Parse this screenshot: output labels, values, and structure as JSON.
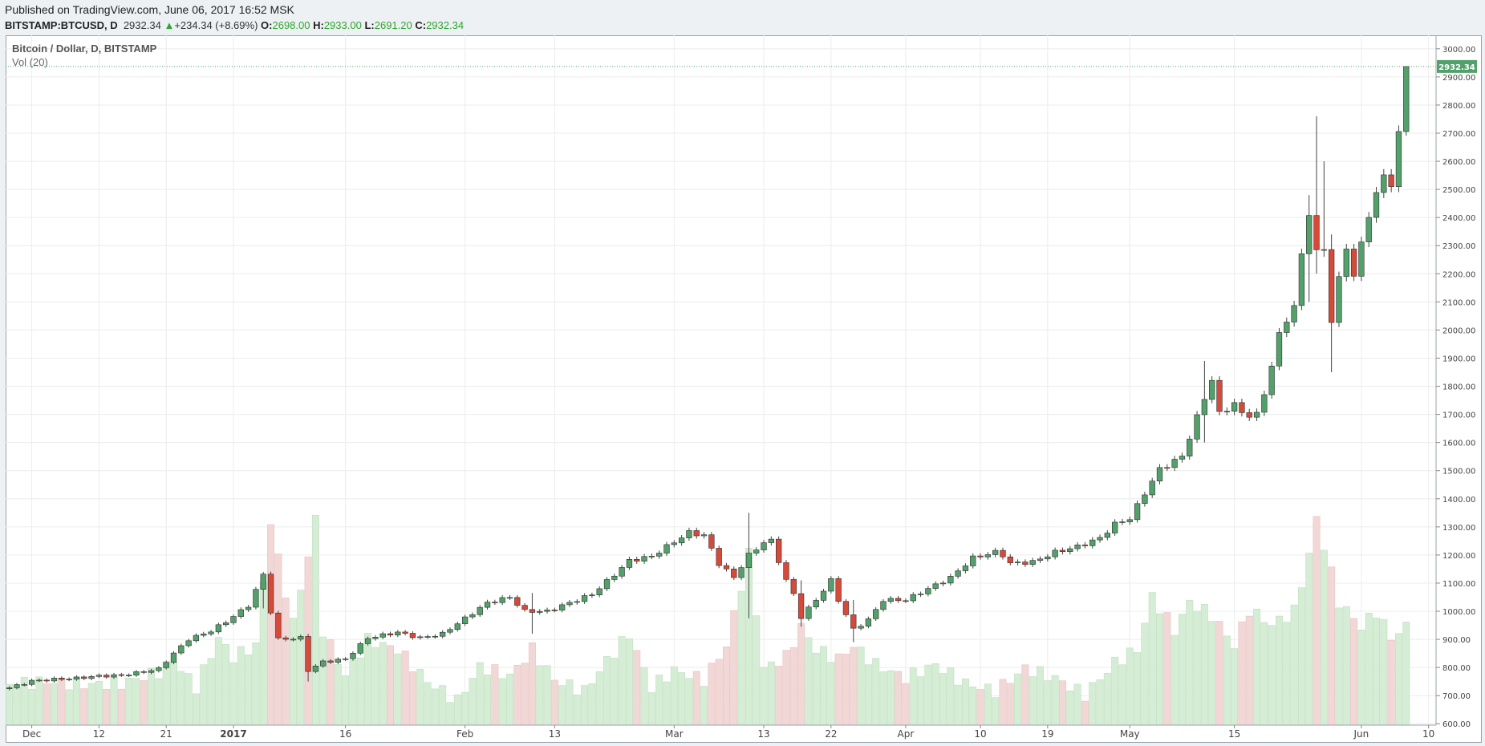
{
  "header": {
    "published": "Published on TradingView.com, June 06, 2017 16:52 MSK",
    "symbol": "BITSTAMP:BTCUSD, D",
    "price": "2932.34",
    "arrow": "▲",
    "change": "+234.34 (+8.69%)",
    "open_label": "O:",
    "open": "2698.00",
    "high_label": "H:",
    "high": "2933.00",
    "low_label": "L:",
    "low": "2691.20",
    "close_label": "C:",
    "close": "2932.34"
  },
  "legend": {
    "title": "Bitcoin / Dollar, D, BITSTAMP",
    "volume": "Vol (20)"
  },
  "colors": {
    "up": "#53a06b",
    "down": "#d64a3a",
    "vol_up": "#d5ecd5",
    "vol_down": "#f2d7d7",
    "price_line": "#53a06b",
    "grid": "#ececec"
  },
  "chart_data": {
    "type": "candlestick",
    "ylim": [
      595,
      3048
    ],
    "yticks": [
      600,
      700,
      800,
      900,
      1000,
      1100,
      1200,
      1300,
      1400,
      1500,
      1600,
      1700,
      1800,
      1900,
      2000,
      2100,
      2200,
      2300,
      2400,
      2500,
      2600,
      2700,
      2800,
      2900,
      3000
    ],
    "ytick_labels": [
      "600.00",
      "700.00",
      "800.00",
      "900.00",
      "1000.00",
      "1100.00",
      "1200.00",
      "1300.00",
      "1400.00",
      "1500.00",
      "1600.00",
      "1700.00",
      "1800.00",
      "1900.00",
      "2000.00",
      "2100.00",
      "2200.00",
      "2300.00",
      "2400.00",
      "2500.00",
      "2600.00",
      "2700.00",
      "2800.00",
      "2900.00",
      "3000.00"
    ],
    "xticks": [
      {
        "label": "Dec",
        "day": 3,
        "bold": false
      },
      {
        "label": "12",
        "day": 12,
        "bold": false
      },
      {
        "label": "21",
        "day": 21,
        "bold": false
      },
      {
        "label": "2017",
        "day": 30,
        "bold": true
      },
      {
        "label": "16",
        "day": 45,
        "bold": false
      },
      {
        "label": "Feb",
        "day": 61,
        "bold": false
      },
      {
        "label": "13",
        "day": 73,
        "bold": false
      },
      {
        "label": "Mar",
        "day": 89,
        "bold": false
      },
      {
        "label": "13",
        "day": 101,
        "bold": false
      },
      {
        "label": "22",
        "day": 110,
        "bold": false
      },
      {
        "label": "Apr",
        "day": 120,
        "bold": false
      },
      {
        "label": "10",
        "day": 130,
        "bold": false
      },
      {
        "label": "19",
        "day": 139,
        "bold": false
      },
      {
        "label": "May",
        "day": 150,
        "bold": false
      },
      {
        "label": "15",
        "day": 164,
        "bold": false
      },
      {
        "label": "Jun",
        "day": 181,
        "bold": false
      },
      {
        "label": "10",
        "day": 190,
        "bold": false
      }
    ],
    "anchors": [
      {
        "day": 0,
        "close": 728
      },
      {
        "day": 3,
        "close": 752
      },
      {
        "day": 6,
        "close": 758
      },
      {
        "day": 9,
        "close": 762
      },
      {
        "day": 12,
        "close": 770
      },
      {
        "day": 15,
        "close": 772
      },
      {
        "day": 18,
        "close": 785
      },
      {
        "day": 20,
        "close": 795
      },
      {
        "day": 22,
        "close": 850
      },
      {
        "day": 24,
        "close": 900
      },
      {
        "day": 27,
        "close": 930
      },
      {
        "day": 29,
        "close": 963
      },
      {
        "day": 32,
        "close": 1020
      },
      {
        "day": 34,
        "close": 1130
      },
      {
        "day": 35,
        "close": 1000
      },
      {
        "day": 36,
        "close": 900
      },
      {
        "day": 39,
        "close": 905
      },
      {
        "day": 40,
        "close": 790
      },
      {
        "day": 42,
        "close": 820
      },
      {
        "day": 45,
        "close": 830
      },
      {
        "day": 48,
        "close": 905
      },
      {
        "day": 52,
        "close": 925
      },
      {
        "day": 55,
        "close": 905
      },
      {
        "day": 58,
        "close": 920
      },
      {
        "day": 61,
        "close": 975
      },
      {
        "day": 64,
        "close": 1030
      },
      {
        "day": 67,
        "close": 1050
      },
      {
        "day": 69,
        "close": 1000
      },
      {
        "day": 72,
        "close": 1000
      },
      {
        "day": 75,
        "close": 1030
      },
      {
        "day": 78,
        "close": 1060
      },
      {
        "day": 81,
        "close": 1130
      },
      {
        "day": 83,
        "close": 1180
      },
      {
        "day": 86,
        "close": 1195
      },
      {
        "day": 88,
        "close": 1230
      },
      {
        "day": 91,
        "close": 1280
      },
      {
        "day": 93,
        "close": 1270
      },
      {
        "day": 95,
        "close": 1170
      },
      {
        "day": 97,
        "close": 1120
      },
      {
        "day": 99,
        "close": 1200
      },
      {
        "day": 101,
        "close": 1245
      },
      {
        "day": 102,
        "close": 1250
      },
      {
        "day": 104,
        "close": 1110
      },
      {
        "day": 105,
        "close": 1060
      },
      {
        "day": 106,
        "close": 980
      },
      {
        "day": 108,
        "close": 1040
      },
      {
        "day": 110,
        "close": 1110
      },
      {
        "day": 111,
        "close": 1040
      },
      {
        "day": 113,
        "close": 935
      },
      {
        "day": 115,
        "close": 970
      },
      {
        "day": 117,
        "close": 1040
      },
      {
        "day": 120,
        "close": 1040
      },
      {
        "day": 123,
        "close": 1080
      },
      {
        "day": 126,
        "close": 1120
      },
      {
        "day": 129,
        "close": 1190
      },
      {
        "day": 132,
        "close": 1210
      },
      {
        "day": 133,
        "close": 1200
      },
      {
        "day": 134,
        "close": 1170
      },
      {
        "day": 137,
        "close": 1175
      },
      {
        "day": 140,
        "close": 1210
      },
      {
        "day": 143,
        "close": 1230
      },
      {
        "day": 146,
        "close": 1260
      },
      {
        "day": 148,
        "close": 1310
      },
      {
        "day": 150,
        "close": 1330
      },
      {
        "day": 152,
        "close": 1420
      },
      {
        "day": 154,
        "close": 1505
      },
      {
        "day": 157,
        "close": 1550
      },
      {
        "day": 159,
        "close": 1690
      },
      {
        "day": 161,
        "close": 1825
      },
      {
        "day": 162,
        "close": 1700
      },
      {
        "day": 164,
        "close": 1740
      },
      {
        "day": 165,
        "close": 1700
      },
      {
        "day": 166,
        "close": 1700
      },
      {
        "day": 167,
        "close": 1700
      },
      {
        "day": 168,
        "close": 1770
      },
      {
        "day": 169,
        "close": 1880
      },
      {
        "day": 170,
        "close": 1980
      },
      {
        "day": 172,
        "close": 2090
      },
      {
        "day": 173,
        "close": 2260
      },
      {
        "day": 174,
        "close": 2420
      },
      {
        "day": 175,
        "close": 2280
      },
      {
        "day": 176,
        "close": 2280
      },
      {
        "day": 177,
        "close": 2040
      },
      {
        "day": 178,
        "close": 2180
      },
      {
        "day": 179,
        "close": 2290
      },
      {
        "day": 180,
        "close": 2200
      },
      {
        "day": 181,
        "close": 2300
      },
      {
        "day": 182,
        "close": 2410
      },
      {
        "day": 183,
        "close": 2490
      },
      {
        "day": 184,
        "close": 2540
      },
      {
        "day": 185,
        "close": 2525
      },
      {
        "day": 186,
        "close": 2698
      },
      {
        "day": 187,
        "close": 2932.34
      }
    ],
    "wicks": [
      {
        "day": 34,
        "high": 1140,
        "low": 1010
      },
      {
        "day": 40,
        "high": 920,
        "low": 750
      },
      {
        "day": 70,
        "high": 1065,
        "low": 920
      },
      {
        "day": 99,
        "high": 1350,
        "low": 975
      },
      {
        "day": 106,
        "high": 1110,
        "low": 945
      },
      {
        "day": 113,
        "high": 1040,
        "low": 890
      },
      {
        "day": 160,
        "high": 1890,
        "low": 1600
      },
      {
        "day": 174,
        "high": 2480,
        "low": 2100
      },
      {
        "day": 175,
        "high": 2760,
        "low": 2200
      },
      {
        "day": 176,
        "high": 2600,
        "low": 2260
      },
      {
        "day": 177,
        "high": 2340,
        "low": 1850
      },
      {
        "day": 187,
        "high": 2933,
        "low": 2691.2
      }
    ],
    "volume_max": 1100,
    "volume": [
      {
        "day": 0,
        "value": 215
      },
      {
        "day": 5,
        "value": 230
      },
      {
        "day": 10,
        "value": 215
      },
      {
        "day": 15,
        "value": 220
      },
      {
        "day": 20,
        "value": 280
      },
      {
        "day": 22,
        "value": 340
      },
      {
        "day": 25,
        "value": 200
      },
      {
        "day": 28,
        "value": 460
      },
      {
        "day": 30,
        "value": 360
      },
      {
        "day": 33,
        "value": 420
      },
      {
        "day": 35,
        "value": 1080
      },
      {
        "day": 36,
        "value": 870
      },
      {
        "day": 38,
        "value": 540
      },
      {
        "day": 41,
        "value": 1080
      },
      {
        "day": 42,
        "value": 500
      },
      {
        "day": 45,
        "value": 260
      },
      {
        "day": 48,
        "value": 450
      },
      {
        "day": 52,
        "value": 400
      },
      {
        "day": 56,
        "value": 230
      },
      {
        "day": 60,
        "value": 130
      },
      {
        "day": 63,
        "value": 310
      },
      {
        "day": 67,
        "value": 260
      },
      {
        "day": 70,
        "value": 400
      },
      {
        "day": 73,
        "value": 240
      },
      {
        "day": 77,
        "value": 180
      },
      {
        "day": 80,
        "value": 340
      },
      {
        "day": 83,
        "value": 480
      },
      {
        "day": 86,
        "value": 200
      },
      {
        "day": 89,
        "value": 290
      },
      {
        "day": 93,
        "value": 240
      },
      {
        "day": 96,
        "value": 420
      },
      {
        "day": 99,
        "value": 900
      },
      {
        "day": 101,
        "value": 300
      },
      {
        "day": 104,
        "value": 360
      },
      {
        "day": 106,
        "value": 520
      },
      {
        "day": 108,
        "value": 400
      },
      {
        "day": 111,
        "value": 350
      },
      {
        "day": 113,
        "value": 420
      },
      {
        "day": 116,
        "value": 320
      },
      {
        "day": 120,
        "value": 250
      },
      {
        "day": 124,
        "value": 320
      },
      {
        "day": 128,
        "value": 220
      },
      {
        "day": 132,
        "value": 180
      },
      {
        "day": 136,
        "value": 300
      },
      {
        "day": 140,
        "value": 250
      },
      {
        "day": 144,
        "value": 160
      },
      {
        "day": 148,
        "value": 330
      },
      {
        "day": 151,
        "value": 400
      },
      {
        "day": 153,
        "value": 680
      },
      {
        "day": 156,
        "value": 500
      },
      {
        "day": 158,
        "value": 650
      },
      {
        "day": 161,
        "value": 580
      },
      {
        "day": 164,
        "value": 420
      },
      {
        "day": 166,
        "value": 610
      },
      {
        "day": 169,
        "value": 530
      },
      {
        "day": 172,
        "value": 600
      },
      {
        "day": 174,
        "value": 900
      },
      {
        "day": 175,
        "value": 1090
      },
      {
        "day": 176,
        "value": 950
      },
      {
        "day": 178,
        "value": 650
      },
      {
        "day": 181,
        "value": 520
      },
      {
        "day": 183,
        "value": 600
      },
      {
        "day": 185,
        "value": 460
      },
      {
        "day": 187,
        "value": 520
      }
    ],
    "last_price_label": "2932.34"
  }
}
